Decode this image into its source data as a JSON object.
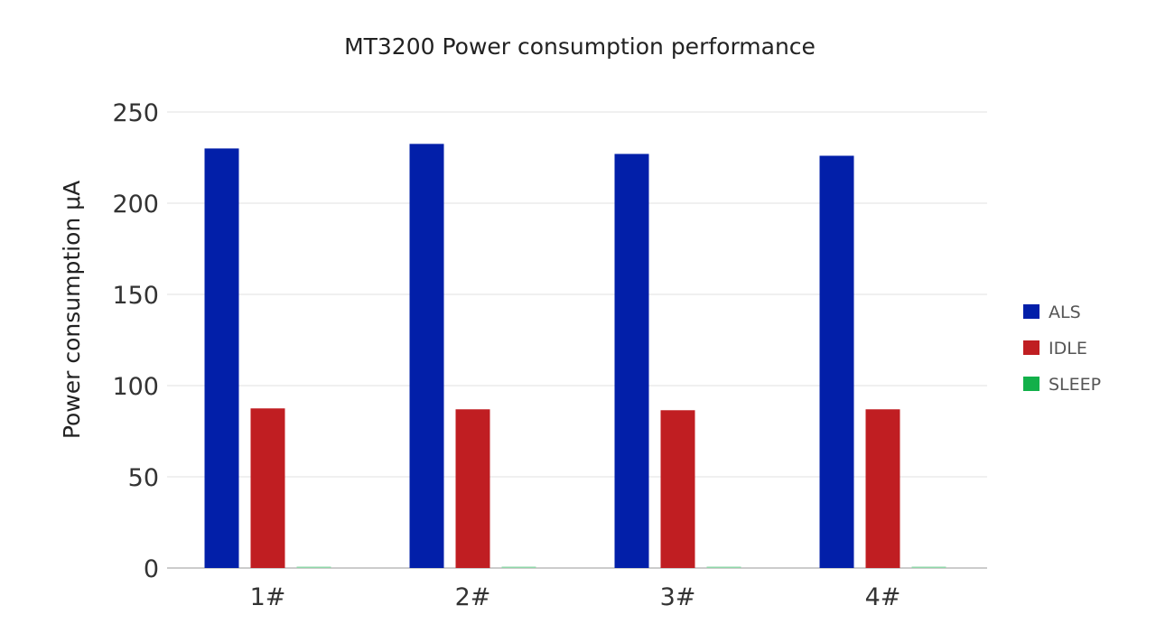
{
  "chart_data": {
    "type": "bar",
    "title": "MT3200 Power consumption performance",
    "xlabel": "",
    "ylabel": "Power consumption μA",
    "ylim": [
      0,
      250
    ],
    "yticks": [
      0,
      50,
      100,
      150,
      200,
      250
    ],
    "grid": true,
    "legend_position": "right",
    "categories": [
      "1#",
      "2#",
      "3#",
      "4#"
    ],
    "series": [
      {
        "name": "ALS",
        "color": "#021fa9",
        "values": [
          230,
          232.5,
          227,
          226
        ]
      },
      {
        "name": "IDLE",
        "color": "#c01e22",
        "values": [
          87.5,
          87,
          86.5,
          87
        ]
      },
      {
        "name": "SLEEP",
        "color": "#12b04a",
        "values": [
          0.7,
          0.7,
          0.7,
          0.7
        ]
      }
    ]
  }
}
